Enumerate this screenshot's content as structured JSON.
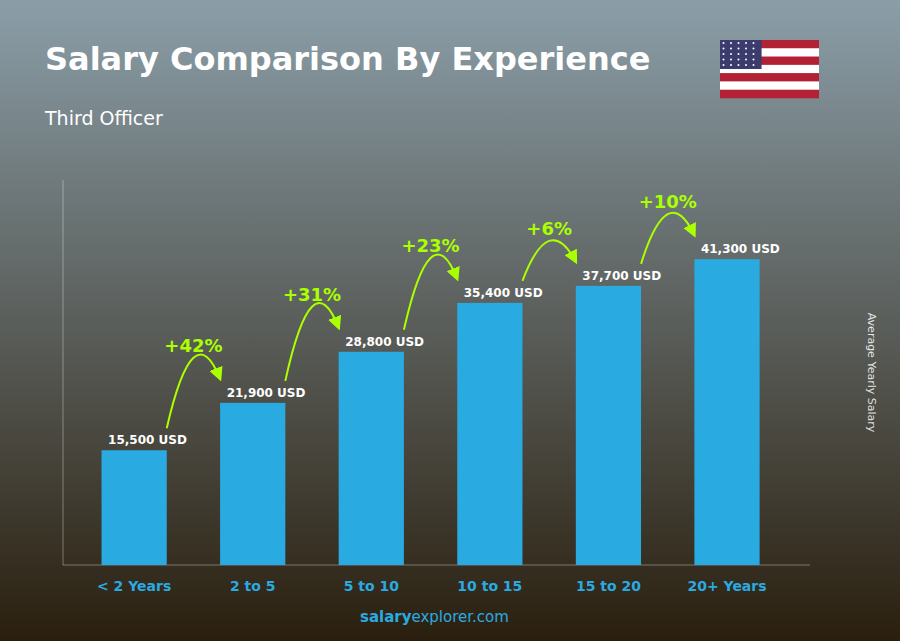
{
  "chart_data": {
    "type": "bar",
    "title": "Salary Comparison By Experience",
    "subtitle": "Third Officer",
    "ylabel": "Average Yearly Salary",
    "categories": [
      "< 2 Years",
      "2 to 5",
      "5 to 10",
      "10 to 15",
      "15 to 20",
      "20+ Years"
    ],
    "values": [
      15500,
      21900,
      28800,
      35400,
      37700,
      41300
    ],
    "value_labels": [
      "15,500 USD",
      "21,900 USD",
      "28,800 USD",
      "35,400 USD",
      "37,700 USD",
      "41,300 USD"
    ],
    "data_labels": true,
    "annotations": [
      "+42%",
      "+31%",
      "+23%",
      "+6%",
      "+10%"
    ],
    "footer": {
      "bold": "salary",
      "normal": "explorer.com"
    },
    "color": "#29ABE2",
    "ylim": [
      0,
      52000
    ],
    "yticks": [],
    "tick_labels": "x",
    "grid": false
  }
}
